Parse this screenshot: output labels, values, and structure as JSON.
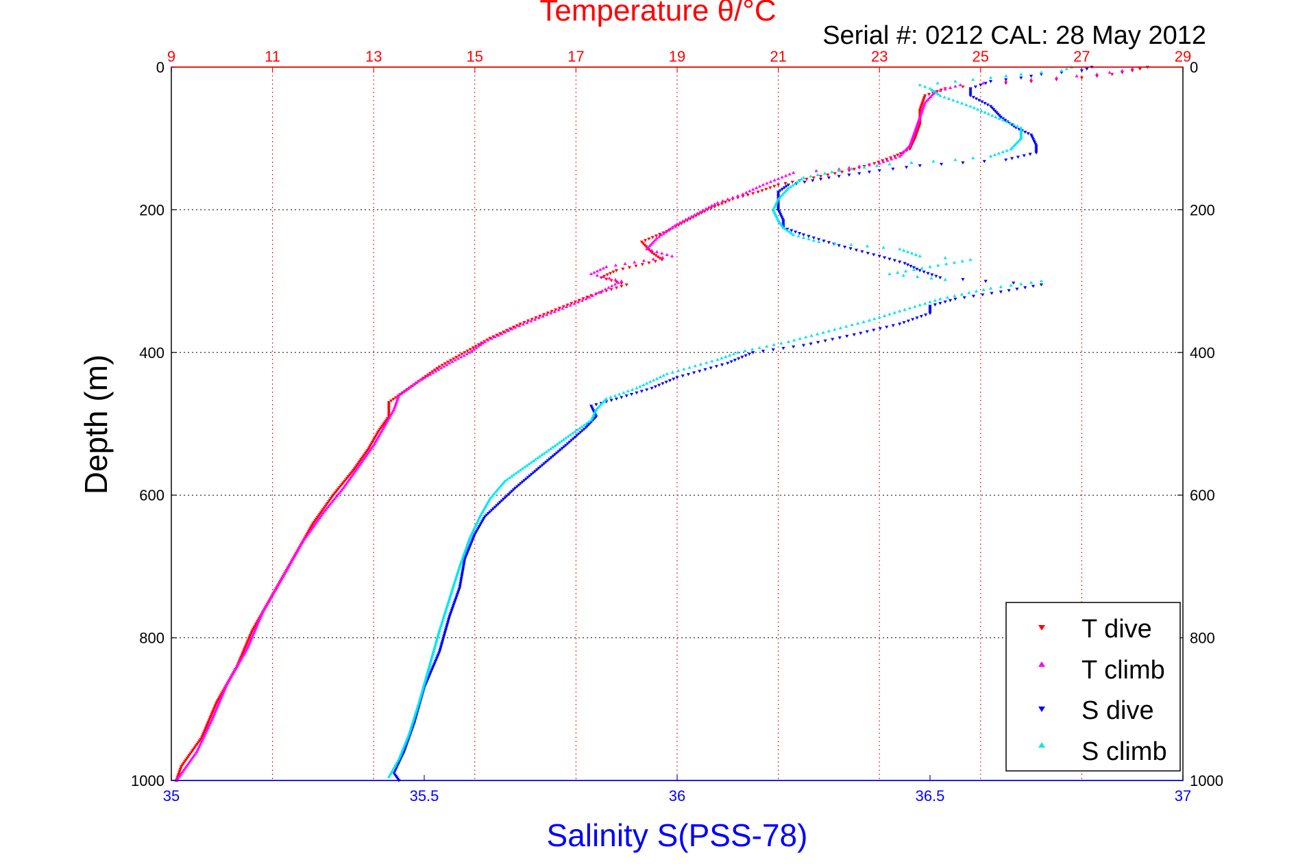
{
  "chart_data": {
    "type": "scatter",
    "title": "Temperature θ/°C",
    "subtitle": "Serial #: 0212  CAL: 28 May 2012",
    "ylabel": "Depth (m)",
    "xlabel_bottom": "Salinity S(PSS-78)",
    "xlabel_top": "Temperature θ/°C",
    "y_reversed": true,
    "ylim": [
      0,
      1000
    ],
    "x_bottom_lim": [
      35,
      37
    ],
    "x_top_lim": [
      9,
      29
    ],
    "y_ticks": [
      "0",
      "200",
      "400",
      "600",
      "800",
      "1000"
    ],
    "x_bottom_ticks": [
      "35",
      "35.5",
      "36",
      "36.5",
      "37"
    ],
    "x_top_ticks": [
      "9",
      "11",
      "13",
      "15",
      "17",
      "19",
      "21",
      "23",
      "25",
      "27",
      "29"
    ],
    "grid": true,
    "legend_position": "bottom-right",
    "colors": {
      "temperature_axis": "#ff0000",
      "salinity_axis": "#0000ff",
      "grid_top": "#ff0000",
      "grid_bottom": "#000000"
    },
    "series": [
      {
        "name": "T dive",
        "axis": "top",
        "marker": "triangle-down",
        "color": "#ff0000",
        "points": [
          [
            28.3,
            0
          ],
          [
            28.0,
            5
          ],
          [
            27.6,
            10
          ],
          [
            27.0,
            15
          ],
          [
            26.0,
            20
          ],
          [
            25.0,
            25
          ],
          [
            24.3,
            30
          ],
          [
            23.9,
            40
          ],
          [
            23.8,
            60
          ],
          [
            23.8,
            80
          ],
          [
            23.7,
            100
          ],
          [
            23.6,
            115
          ],
          [
            23.3,
            125
          ],
          [
            22.9,
            135
          ],
          [
            22.4,
            145
          ],
          [
            21.7,
            155
          ],
          [
            21.0,
            165
          ],
          [
            20.6,
            175
          ],
          [
            20.1,
            185
          ],
          [
            19.6,
            200
          ],
          [
            19.2,
            215
          ],
          [
            18.8,
            230
          ],
          [
            18.3,
            245
          ],
          [
            18.5,
            260
          ],
          [
            18.7,
            270
          ],
          [
            17.8,
            285
          ],
          [
            17.5,
            295
          ],
          [
            18.0,
            305
          ],
          [
            17.3,
            320
          ],
          [
            16.6,
            340
          ],
          [
            15.9,
            360
          ],
          [
            15.3,
            380
          ],
          [
            14.8,
            400
          ],
          [
            14.3,
            420
          ],
          [
            13.8,
            445
          ],
          [
            13.3,
            470
          ],
          [
            13.3,
            490
          ],
          [
            13.1,
            510
          ],
          [
            12.9,
            535
          ],
          [
            12.6,
            565
          ],
          [
            12.2,
            600
          ],
          [
            11.8,
            640
          ],
          [
            11.4,
            690
          ],
          [
            11.0,
            740
          ],
          [
            10.6,
            790
          ],
          [
            10.3,
            840
          ],
          [
            9.9,
            890
          ],
          [
            9.6,
            940
          ],
          [
            9.2,
            980
          ],
          [
            9.1,
            1000
          ]
        ]
      },
      {
        "name": "T climb",
        "axis": "top",
        "marker": "triangle-up",
        "color": "#ff00ff",
        "points": [
          [
            28.0,
            2
          ],
          [
            27.8,
            5
          ],
          [
            27.3,
            10
          ],
          [
            26.5,
            15
          ],
          [
            25.5,
            20
          ],
          [
            24.6,
            25
          ],
          [
            24.1,
            35
          ],
          [
            23.9,
            50
          ],
          [
            23.8,
            70
          ],
          [
            23.7,
            90
          ],
          [
            23.6,
            110
          ],
          [
            23.4,
            125
          ],
          [
            23.0,
            135
          ],
          [
            22.2,
            143
          ],
          [
            21.3,
            148
          ],
          [
            20.7,
            165
          ],
          [
            20.3,
            178
          ],
          [
            19.8,
            190
          ],
          [
            19.4,
            205
          ],
          [
            19.0,
            220
          ],
          [
            18.6,
            240
          ],
          [
            18.4,
            255
          ],
          [
            18.9,
            265
          ],
          [
            17.6,
            280
          ],
          [
            17.3,
            290
          ],
          [
            17.9,
            300
          ],
          [
            17.2,
            325
          ],
          [
            16.5,
            345
          ],
          [
            15.8,
            365
          ],
          [
            15.2,
            385
          ],
          [
            14.9,
            400
          ],
          [
            14.5,
            415
          ],
          [
            13.9,
            440
          ],
          [
            13.5,
            460
          ],
          [
            13.4,
            480
          ],
          [
            13.2,
            505
          ],
          [
            13.0,
            530
          ],
          [
            12.7,
            560
          ],
          [
            12.4,
            590
          ],
          [
            12.0,
            625
          ],
          [
            11.6,
            665
          ],
          [
            11.2,
            715
          ],
          [
            10.8,
            765
          ],
          [
            10.5,
            815
          ],
          [
            10.1,
            865
          ],
          [
            9.8,
            915
          ],
          [
            9.5,
            960
          ],
          [
            9.2,
            990
          ],
          [
            9.1,
            1000
          ]
        ]
      },
      {
        "name": "S dive",
        "axis": "bottom",
        "marker": "triangle-down",
        "color": "#0000ff",
        "points": [
          [
            36.82,
            0
          ],
          [
            36.8,
            5
          ],
          [
            36.72,
            10
          ],
          [
            36.68,
            15
          ],
          [
            36.62,
            20
          ],
          [
            36.6,
            25
          ],
          [
            36.58,
            30
          ],
          [
            36.58,
            40
          ],
          [
            36.62,
            55
          ],
          [
            36.64,
            70
          ],
          [
            36.67,
            85
          ],
          [
            36.7,
            95
          ],
          [
            36.71,
            110
          ],
          [
            36.71,
            120
          ],
          [
            36.65,
            130
          ],
          [
            36.48,
            138
          ],
          [
            36.4,
            145
          ],
          [
            36.3,
            155
          ],
          [
            36.22,
            165
          ],
          [
            36.2,
            175
          ],
          [
            36.2,
            190
          ],
          [
            36.2,
            200
          ],
          [
            36.21,
            215
          ],
          [
            36.21,
            225
          ],
          [
            36.25,
            235
          ],
          [
            36.32,
            250
          ],
          [
            36.4,
            265
          ],
          [
            36.45,
            275
          ],
          [
            36.48,
            285
          ],
          [
            36.52,
            295
          ],
          [
            36.61,
            300
          ],
          [
            36.72,
            305
          ],
          [
            36.64,
            315
          ],
          [
            36.55,
            325
          ],
          [
            36.5,
            335
          ],
          [
            36.5,
            345
          ],
          [
            36.44,
            360
          ],
          [
            36.35,
            375
          ],
          [
            36.25,
            390
          ],
          [
            36.15,
            400
          ],
          [
            36.1,
            415
          ],
          [
            36.0,
            435
          ],
          [
            35.95,
            450
          ],
          [
            35.88,
            465
          ],
          [
            35.83,
            475
          ],
          [
            35.84,
            490
          ],
          [
            35.82,
            505
          ],
          [
            35.78,
            530
          ],
          [
            35.73,
            560
          ],
          [
            35.68,
            590
          ],
          [
            35.65,
            610
          ],
          [
            35.62,
            630
          ],
          [
            35.6,
            655
          ],
          [
            35.58,
            690
          ],
          [
            35.57,
            730
          ],
          [
            35.55,
            770
          ],
          [
            35.53,
            820
          ],
          [
            35.5,
            870
          ],
          [
            35.48,
            920
          ],
          [
            35.46,
            960
          ],
          [
            35.44,
            990
          ],
          [
            35.45,
            1000
          ]
        ]
      },
      {
        "name": "S climb",
        "axis": "bottom",
        "marker": "triangle-up",
        "color": "#00e5ee",
        "points": [
          [
            36.78,
            0
          ],
          [
            36.76,
            5
          ],
          [
            36.68,
            10
          ],
          [
            36.62,
            15
          ],
          [
            36.55,
            20
          ],
          [
            36.48,
            25
          ],
          [
            36.5,
            30
          ],
          [
            36.52,
            40
          ],
          [
            36.58,
            55
          ],
          [
            36.63,
            70
          ],
          [
            36.68,
            85
          ],
          [
            36.68,
            100
          ],
          [
            36.66,
            115
          ],
          [
            36.62,
            125
          ],
          [
            36.55,
            130
          ],
          [
            36.42,
            136
          ],
          [
            36.32,
            145
          ],
          [
            36.25,
            155
          ],
          [
            36.22,
            170
          ],
          [
            36.2,
            185
          ],
          [
            36.19,
            200
          ],
          [
            36.2,
            215
          ],
          [
            36.21,
            225
          ],
          [
            36.23,
            235
          ],
          [
            36.28,
            245
          ],
          [
            36.44,
            255
          ],
          [
            36.48,
            265
          ],
          [
            36.58,
            270
          ],
          [
            36.5,
            280
          ],
          [
            36.42,
            290
          ],
          [
            36.53,
            298
          ],
          [
            36.72,
            300
          ],
          [
            36.62,
            310
          ],
          [
            36.52,
            325
          ],
          [
            36.45,
            340
          ],
          [
            36.38,
            355
          ],
          [
            36.3,
            370
          ],
          [
            36.22,
            385
          ],
          [
            36.12,
            400
          ],
          [
            36.08,
            410
          ],
          [
            35.98,
            430
          ],
          [
            35.92,
            450
          ],
          [
            35.86,
            465
          ],
          [
            35.84,
            480
          ],
          [
            35.83,
            495
          ],
          [
            35.78,
            520
          ],
          [
            35.72,
            550
          ],
          [
            35.66,
            580
          ],
          [
            35.63,
            605
          ],
          [
            35.61,
            630
          ],
          [
            35.59,
            660
          ],
          [
            35.57,
            700
          ],
          [
            35.55,
            745
          ],
          [
            35.53,
            790
          ],
          [
            35.51,
            840
          ],
          [
            35.49,
            890
          ],
          [
            35.47,
            935
          ],
          [
            35.45,
            970
          ],
          [
            35.43,
            995
          ]
        ]
      }
    ],
    "legend": [
      {
        "label": "T dive",
        "marker": "triangle-down",
        "color": "#ff0000"
      },
      {
        "label": "T climb",
        "marker": "triangle-up",
        "color": "#ff00ff"
      },
      {
        "label": "S dive",
        "marker": "triangle-down",
        "color": "#0000ff"
      },
      {
        "label": "S climb",
        "marker": "triangle-up",
        "color": "#00e5ee"
      }
    ]
  }
}
